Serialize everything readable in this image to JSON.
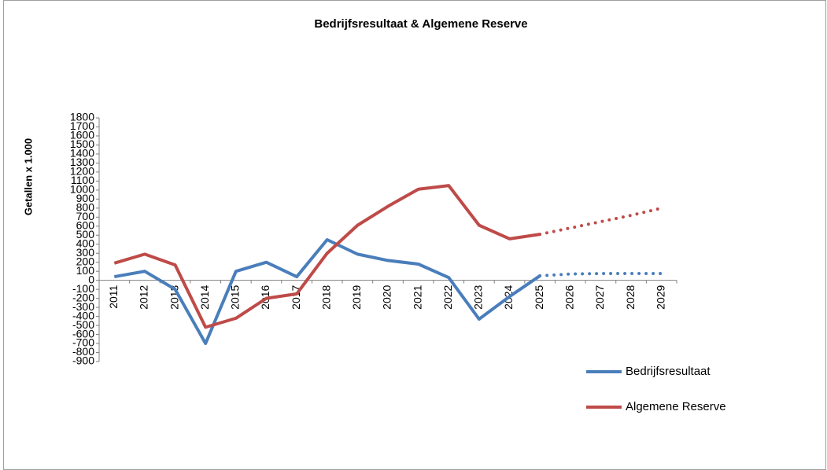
{
  "chart_data": {
    "type": "line",
    "title": "Bedrijfsresultaat & Algemene Reserve",
    "ylabel": "Getallen x 1.000",
    "categories": [
      "2011",
      "2012",
      "2013",
      "2014",
      "2015",
      "2016",
      "2017",
      "2018",
      "2019",
      "2020",
      "2021",
      "2022",
      "2023",
      "2024",
      "2025",
      "2026",
      "2027",
      "2028",
      "2029"
    ],
    "dotted_from": "2025",
    "series": [
      {
        "name": "Bedrijfsresultaat",
        "color": "#4a7ebb",
        "values": [
          40,
          100,
          -100,
          -700,
          100,
          200,
          40,
          450,
          290,
          220,
          180,
          30,
          -430,
          -180,
          50,
          70,
          75,
          75,
          75
        ]
      },
      {
        "name": "Algemene Reserve",
        "color": "#be4b48",
        "values": [
          190,
          290,
          170,
          -520,
          -420,
          -200,
          -150,
          300,
          610,
          820,
          1010,
          1050,
          610,
          460,
          510,
          580,
          650,
          720,
          800
        ]
      }
    ],
    "ylim": [
      -900,
      1800
    ],
    "yticks": [
      -900,
      -800,
      -700,
      -600,
      -500,
      -400,
      -300,
      -200,
      -100,
      0,
      100,
      200,
      300,
      400,
      500,
      600,
      700,
      800,
      900,
      1000,
      1100,
      1200,
      1300,
      1400,
      1500,
      1600,
      1700,
      1800
    ],
    "grid": false,
    "legend": "right"
  }
}
